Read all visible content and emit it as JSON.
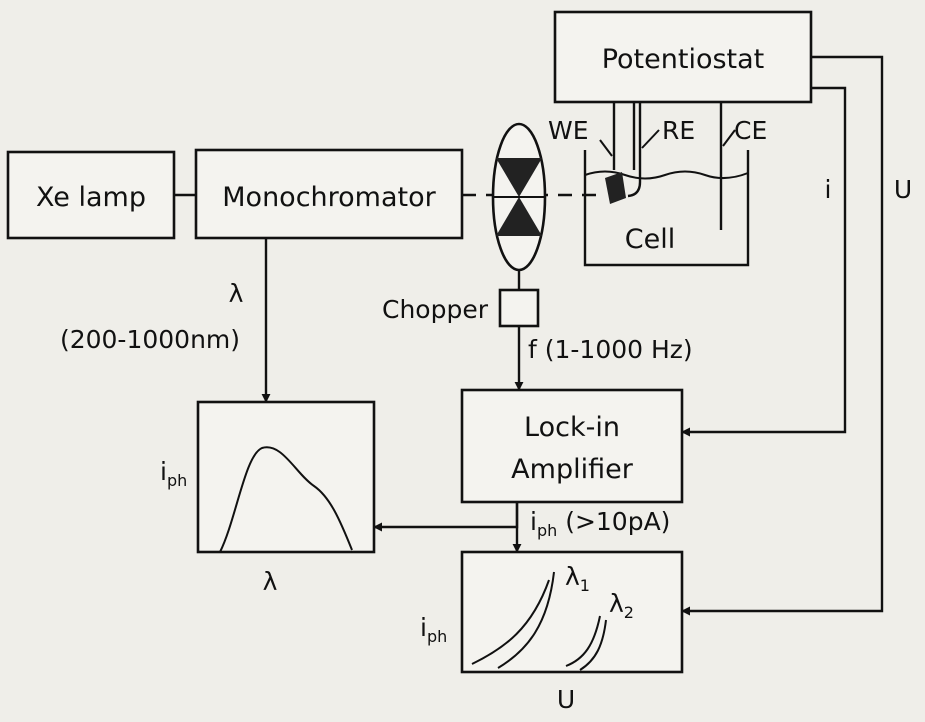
{
  "blocks": {
    "xe_lamp": "Xe lamp",
    "monochromator": "Monochromator",
    "potentiostat": "Potentiostat",
    "cell": "Cell",
    "chopper": "Chopper",
    "lockin_line1": "Lock-in",
    "lockin_line2": "Amplifier"
  },
  "electrodes": {
    "we": "WE",
    "re": "RE",
    "ce": "CE"
  },
  "signals": {
    "current": "i",
    "voltage": "U",
    "lambda": "λ",
    "wavelength_range": "(200-1000nm)",
    "frequency": "f (1-1000 Hz)",
    "iph_main": "i",
    "iph_sub": "ph",
    "iph_range": "(>10pA)"
  },
  "plots": {
    "spectrum": {
      "ylabel_main": "i",
      "ylabel_sub": "ph",
      "xlabel": "λ"
    },
    "voltage_plot": {
      "ylabel_main": "i",
      "ylabel_sub": "ph",
      "xlabel": "U",
      "curve1_main": "λ",
      "curve1_sub": "1",
      "curve2_main": "λ",
      "curve2_sub": "2"
    }
  }
}
